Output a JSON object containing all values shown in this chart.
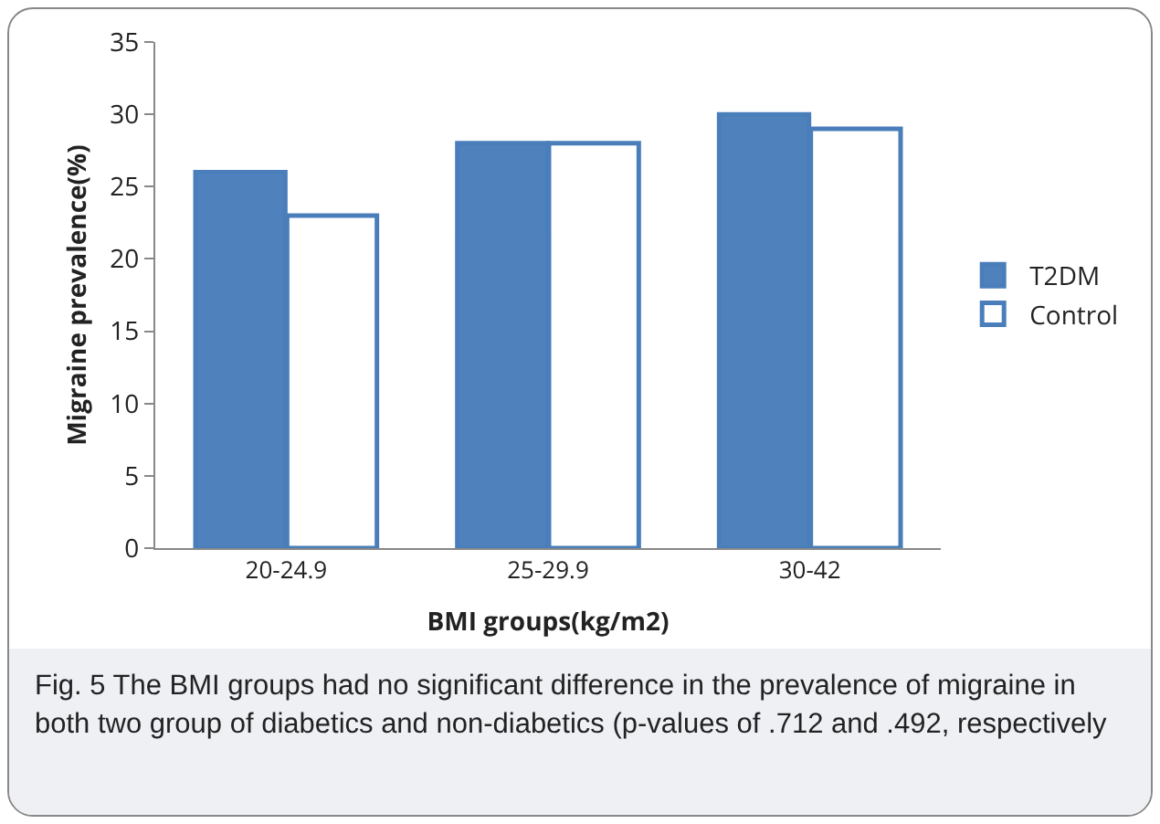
{
  "chart_data": {
    "type": "bar",
    "xlabel": "BMI groups(kg/m2)",
    "ylabel": "Migraine prevalence(%)",
    "categories": [
      "20-24.9",
      "25-29.9",
      "30-42"
    ],
    "series": [
      {
        "name": "T2DM",
        "color": "#4f81bd",
        "values": [
          26,
          28,
          30
        ]
      },
      {
        "name": "Control",
        "color": "#ffffff",
        "values": [
          23,
          28,
          29
        ]
      }
    ],
    "ylim": [
      0,
      35
    ],
    "yticks": [
      0,
      5,
      10,
      15,
      20,
      25,
      30,
      35
    ],
    "grid": false,
    "legend": "right",
    "annotations": [
      "Fig. 5 The BMI groups had no significant difference in the prevalence of migraine in both two group of diabetics and non-diabetics (p-values of .712 and .492, respectively"
    ]
  }
}
